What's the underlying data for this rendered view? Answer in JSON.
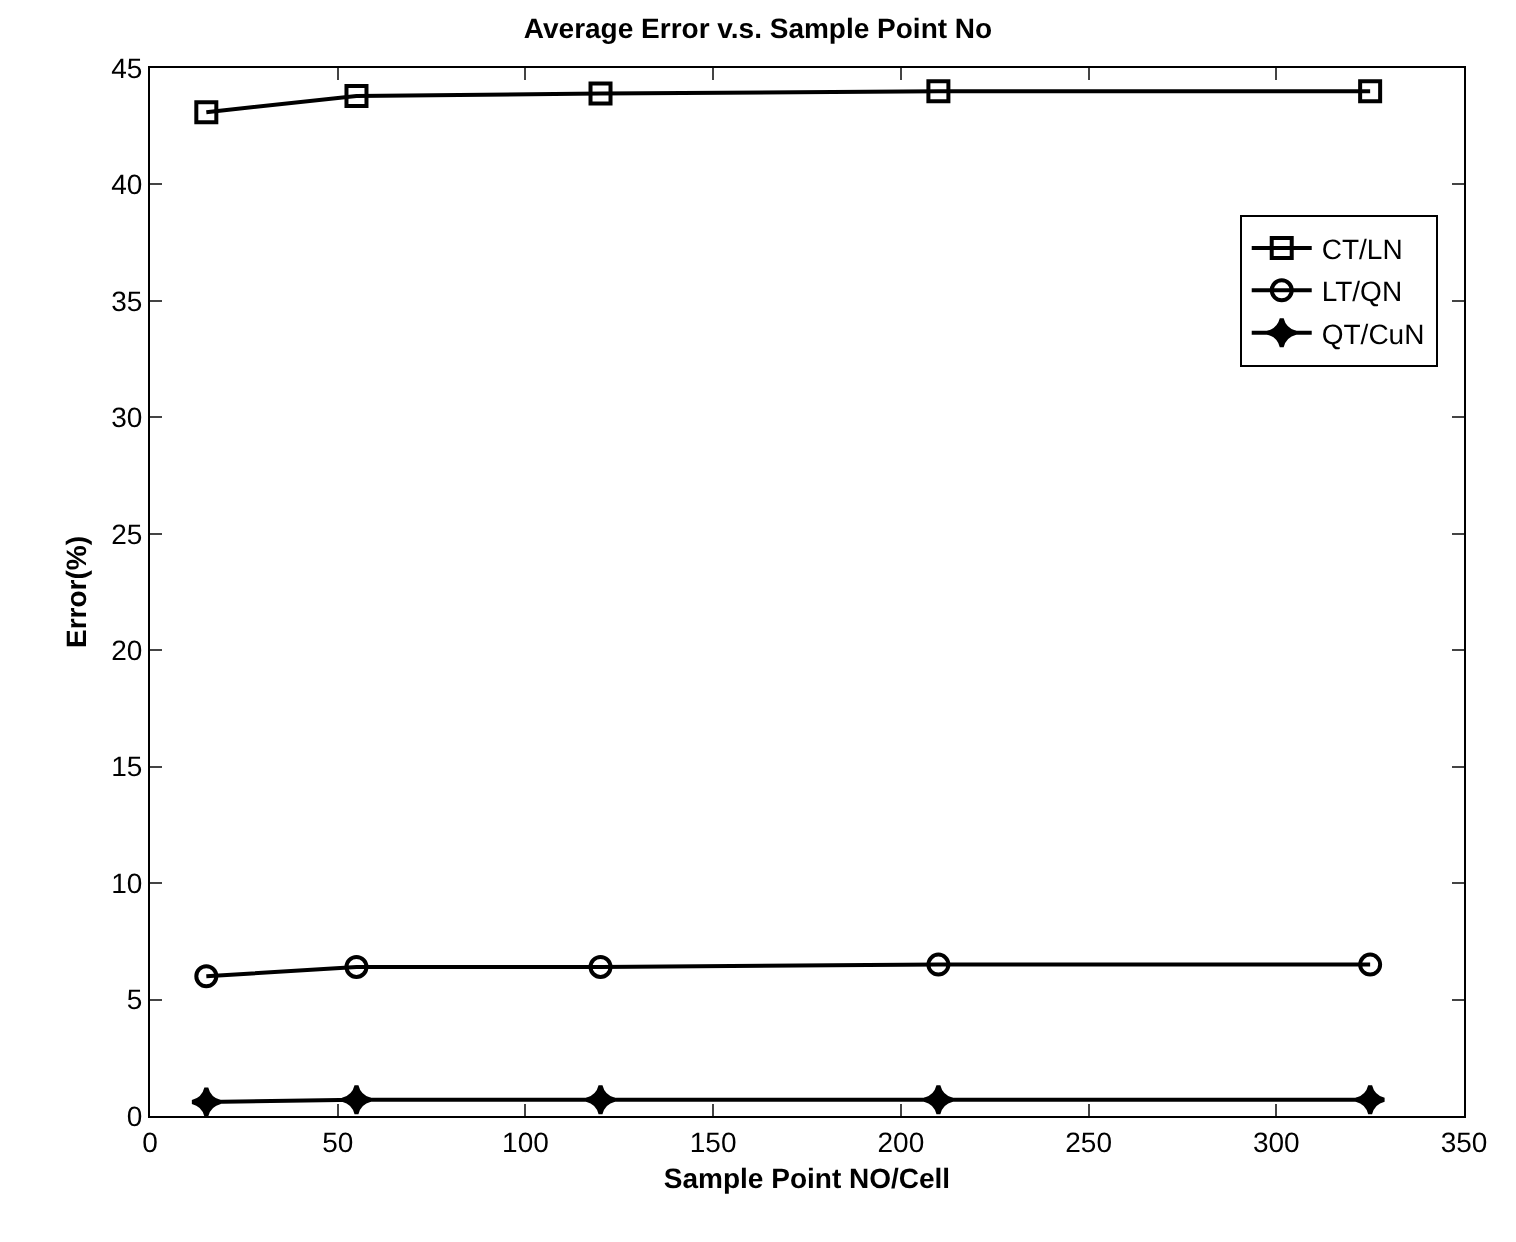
{
  "chart_data": {
    "type": "line",
    "title": "Average Error v.s. Sample Point No",
    "xlabel": "Sample Point NO/Cell",
    "ylabel": "Error(%)",
    "x": [
      15,
      55,
      120,
      210,
      325
    ],
    "series": [
      {
        "name": "CT/LN",
        "color": "#000000",
        "marker": "square",
        "values": [
          43.1,
          43.8,
          43.9,
          44,
          44
        ]
      },
      {
        "name": "LT/QN",
        "color": "#000000",
        "marker": "circle",
        "values": [
          6,
          6.4,
          6.4,
          6.5,
          6.5
        ]
      },
      {
        "name": "QT/CuN",
        "color": "#000000",
        "marker": "star",
        "values": [
          0.6,
          0.7,
          0.7,
          0.7,
          0.7
        ]
      }
    ],
    "xlim": [
      0,
      350
    ],
    "xticks": [
      0,
      50,
      100,
      150,
      200,
      250,
      300,
      350
    ],
    "ylim": [
      0,
      45
    ],
    "yticks": [
      0,
      5,
      10,
      15,
      20,
      25,
      30,
      35,
      40,
      45
    ],
    "grid": false,
    "legend": "top right",
    "line_style": "solid"
  }
}
